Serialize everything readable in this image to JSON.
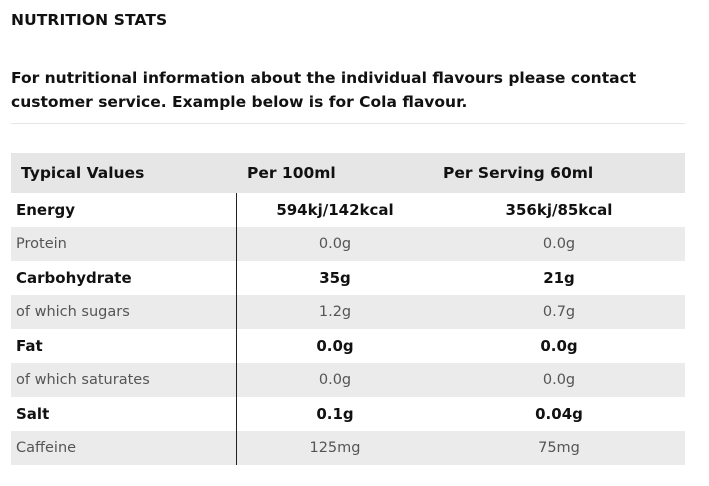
{
  "title": "NUTRITION STATS",
  "intro": "For nutritional information about the individual flavours please contact customer service. Example below is for Cola flavour.",
  "table": {
    "headers": [
      "Typical Values",
      "Per 100ml",
      "Per Serving 60ml"
    ],
    "rows": [
      {
        "label": "Energy",
        "per100": "594kj/142kcal",
        "serving": "356kj/85kcal"
      },
      {
        "label": "Protein",
        "per100": "0.0g",
        "serving": "0.0g"
      },
      {
        "label": "Carbohydrate",
        "per100": "35g",
        "serving": "21g"
      },
      {
        "label": "of which sugars",
        "per100": "1.2g",
        "serving": "0.7g"
      },
      {
        "label": "Fat",
        "per100": "0.0g",
        "serving": "0.0g"
      },
      {
        "label": "of which saturates",
        "per100": "0.0g",
        "serving": "0.0g"
      },
      {
        "label": "Salt",
        "per100": "0.1g",
        "serving": "0.04g"
      },
      {
        "label": "Caffeine",
        "per100": "125mg",
        "serving": "75mg"
      }
    ]
  }
}
